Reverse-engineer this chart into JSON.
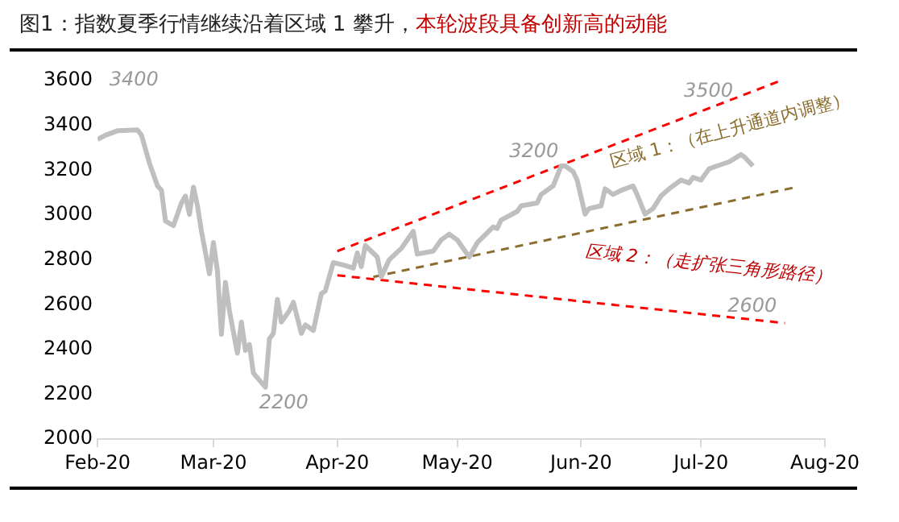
{
  "chart_data": {
    "type": "line",
    "title": "图1：指数夏季行情继续沿着区域 1 攀升，",
    "subtitle": "本轮波段具备创新高的动能",
    "series": [
      {
        "color": "#bfbfbf",
        "x": [
          "2020-02-01",
          "2020-02-03",
          "2020-02-06",
          "2020-02-11",
          "2020-02-12",
          "2020-02-14",
          "2020-02-16",
          "2020-02-17",
          "2020-02-18",
          "2020-02-20",
          "2020-02-22",
          "2020-02-23",
          "2020-02-24",
          "2020-02-25",
          "2020-02-26",
          "2020-02-27",
          "2020-02-29",
          "2020-03-01",
          "2020-03-02",
          "2020-03-03",
          "2020-03-04",
          "2020-03-05",
          "2020-03-07",
          "2020-03-08",
          "2020-03-09",
          "2020-03-10",
          "2020-03-11",
          "2020-03-14",
          "2020-03-15",
          "2020-03-16",
          "2020-03-17",
          "2020-03-18",
          "2020-03-20",
          "2020-03-21",
          "2020-03-23",
          "2020-03-24",
          "2020-03-26",
          "2020-03-28",
          "2020-03-29",
          "2020-03-31",
          "2020-04-03",
          "2020-04-05",
          "2020-04-06",
          "2020-04-07",
          "2020-04-08",
          "2020-04-11",
          "2020-04-12",
          "2020-04-13",
          "2020-04-14",
          "2020-04-17",
          "2020-04-20",
          "2020-04-21",
          "2020-04-25",
          "2020-04-27",
          "2020-04-29",
          "2020-05-01",
          "2020-05-04",
          "2020-05-06",
          "2020-05-10",
          "2020-05-11",
          "2020-05-12",
          "2020-05-16",
          "2020-05-17",
          "2020-05-21",
          "2020-05-22",
          "2020-05-25",
          "2020-05-27",
          "2020-05-28",
          "2020-05-30",
          "2020-05-31",
          "2020-06-02",
          "2020-06-03",
          "2020-06-06",
          "2020-06-07",
          "2020-06-09",
          "2020-06-11",
          "2020-06-14",
          "2020-06-15",
          "2020-06-17",
          "2020-06-19",
          "2020-06-21",
          "2020-06-23",
          "2020-06-26",
          "2020-06-28",
          "2020-06-29",
          "2020-07-01",
          "2020-07-03",
          "2020-07-05",
          "2020-07-08",
          "2020-07-11",
          "2020-07-12",
          "2020-07-14"
        ],
        "values": [
          3337,
          3356,
          3376,
          3380,
          3356,
          3231,
          3130,
          3110,
          2973,
          2953,
          3054,
          3085,
          3003,
          3125,
          3042,
          2928,
          2738,
          2878,
          2751,
          2468,
          2700,
          2573,
          2384,
          2523,
          2396,
          2422,
          2295,
          2232,
          2447,
          2472,
          2624,
          2523,
          2573,
          2611,
          2472,
          2510,
          2485,
          2649,
          2662,
          2788,
          2775,
          2763,
          2831,
          2770,
          2864,
          2813,
          2724,
          2763,
          2801,
          2851,
          2927,
          2826,
          2839,
          2889,
          2915,
          2889,
          2813,
          2876,
          2947,
          2940,
          2978,
          3016,
          3041,
          3054,
          3092,
          3130,
          3219,
          3219,
          3194,
          3156,
          3004,
          3029,
          3041,
          3117,
          3092,
          3110,
          3130,
          3092,
          3004,
          3029,
          3085,
          3117,
          3156,
          3143,
          3168,
          3156,
          3206,
          3219,
          3237,
          3270,
          3257,
          3219
        ]
      },
      {
        "color": "#ff0000",
        "line_style": "dashed",
        "x": [
          "2020-04-01",
          "2020-07-21"
        ],
        "values": [
          2839,
          3600
        ]
      },
      {
        "color": "#8b6d2e",
        "line_style": "dashed",
        "x": [
          "2020-04-10",
          "2020-07-25"
        ],
        "values": [
          2724,
          3125
        ]
      },
      {
        "color": "#ff0000",
        "line_style": "dashed",
        "x": [
          "2020-04-01",
          "2020-07-22"
        ],
        "values": [
          2731,
          2518
        ]
      }
    ],
    "xlim": [
      "2020-02-01",
      "2020-08-01"
    ],
    "xticks": [
      {
        "value": "2020-02-01",
        "label": "Feb-20"
      },
      {
        "value": "2020-03-01",
        "label": "Mar-20"
      },
      {
        "value": "2020-04-01",
        "label": "Apr-20"
      },
      {
        "value": "2020-05-01",
        "label": "May-20"
      },
      {
        "value": "2020-06-01",
        "label": "Jun-20"
      },
      {
        "value": "2020-07-01",
        "label": "Jul-20"
      },
      {
        "value": "2020-08-01",
        "label": "Aug-20"
      }
    ],
    "ylim": [
      2000,
      3600
    ],
    "yticks": [
      2000,
      2200,
      2400,
      2600,
      2800,
      3000,
      3200,
      3400,
      3600
    ],
    "grid": false,
    "legend": false,
    "marker": "none",
    "line_style": "solid",
    "annotations": [
      "3400",
      "2200",
      "3200",
      "3500",
      "2600",
      "区域 1：（在上升通道内调整）",
      "区域 2：（走扩张三角形路径）"
    ]
  }
}
